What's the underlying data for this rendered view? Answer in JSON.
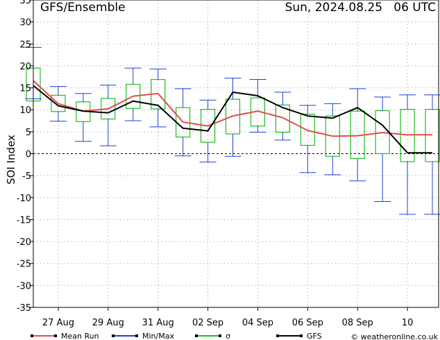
{
  "header": {
    "title": "GFS/Ensemble",
    "datetime": "Sun, 2024.08.25   06 UTC"
  },
  "chart_data": {
    "type": "line",
    "ylabel": "SOI Index",
    "ylim": [
      -35,
      35
    ],
    "yticks": [
      -35,
      -30,
      -25,
      -20,
      -15,
      -10,
      -5,
      0,
      5,
      10,
      15,
      20,
      25,
      30,
      35
    ],
    "xlim": [
      0,
      16.25
    ],
    "xticks": [
      {
        "x": 1,
        "label": "27 Aug"
      },
      {
        "x": 3,
        "label": "29 Aug"
      },
      {
        "x": 5,
        "label": "31 Aug"
      },
      {
        "x": 7,
        "label": "02 Sep"
      },
      {
        "x": 9,
        "label": "04 Sep"
      },
      {
        "x": 11,
        "label": "06 Sep"
      },
      {
        "x": 13,
        "label": "08 Sep"
      },
      {
        "x": 15,
        "label": "10"
      }
    ],
    "x": [
      0,
      1,
      2,
      3,
      4,
      5,
      6,
      7,
      8,
      9,
      10,
      11,
      12,
      13,
      14,
      15,
      16
    ],
    "grid": true,
    "legend_position": "bottom",
    "series": [
      {
        "name": "Mean Run",
        "color": "#e34b4b",
        "values": [
          16.6,
          11.4,
          9.7,
          10.2,
          13.1,
          13.7,
          7.2,
          6.3,
          8.6,
          9.7,
          8.2,
          5.3,
          4.0,
          4.1,
          4.8,
          4.3,
          4.3
        ]
      },
      {
        "name": "GFS",
        "color": "#000000",
        "values": [
          15.5,
          10.9,
          9.7,
          9.3,
          12.0,
          11.0,
          5.8,
          5.2,
          14.0,
          13.2,
          10.5,
          8.6,
          8.1,
          10.5,
          6.5,
          0.2,
          0.2
        ]
      }
    ],
    "minmax": {
      "name": "Min/Max",
      "color": "#1f3fd6",
      "min": [
        12.5,
        7.4,
        2.8,
        1.8,
        7.5,
        6.1,
        -0.5,
        -1.9,
        -0.6,
        4.9,
        3.1,
        -4.3,
        -4.8,
        -6.2,
        -10.9,
        -13.8,
        -13.8
      ],
      "max": [
        24.2,
        15.3,
        13.7,
        15.6,
        19.5,
        19.3,
        14.8,
        12.2,
        17.2,
        16.9,
        14.0,
        11.0,
        11.4,
        14.8,
        12.9,
        13.4,
        13.4
      ]
    },
    "sigma": {
      "name": "σ",
      "color": "#22bb22",
      "low": [
        12.0,
        9.6,
        7.3,
        7.9,
        10.3,
        10.2,
        3.8,
        2.6,
        4.5,
        6.3,
        4.9,
        1.9,
        -0.6,
        -1.1,
        0.0,
        -1.8,
        -1.8
      ],
      "high": [
        19.5,
        13.3,
        11.8,
        12.6,
        15.8,
        16.9,
        10.5,
        10.1,
        12.4,
        12.7,
        11.1,
        9.0,
        8.6,
        9.7,
        9.8,
        10.1,
        10.1
      ]
    },
    "legend": [
      {
        "name": "Mean Run",
        "color": "#e34b4b"
      },
      {
        "name": "Min/Max",
        "color": "#1f3fd6"
      },
      {
        "name": "σ",
        "color": "#22bb22"
      },
      {
        "name": "GFS",
        "color": "#000000"
      }
    ]
  },
  "footer": {
    "credit": "© weatheronline.co.uk"
  }
}
